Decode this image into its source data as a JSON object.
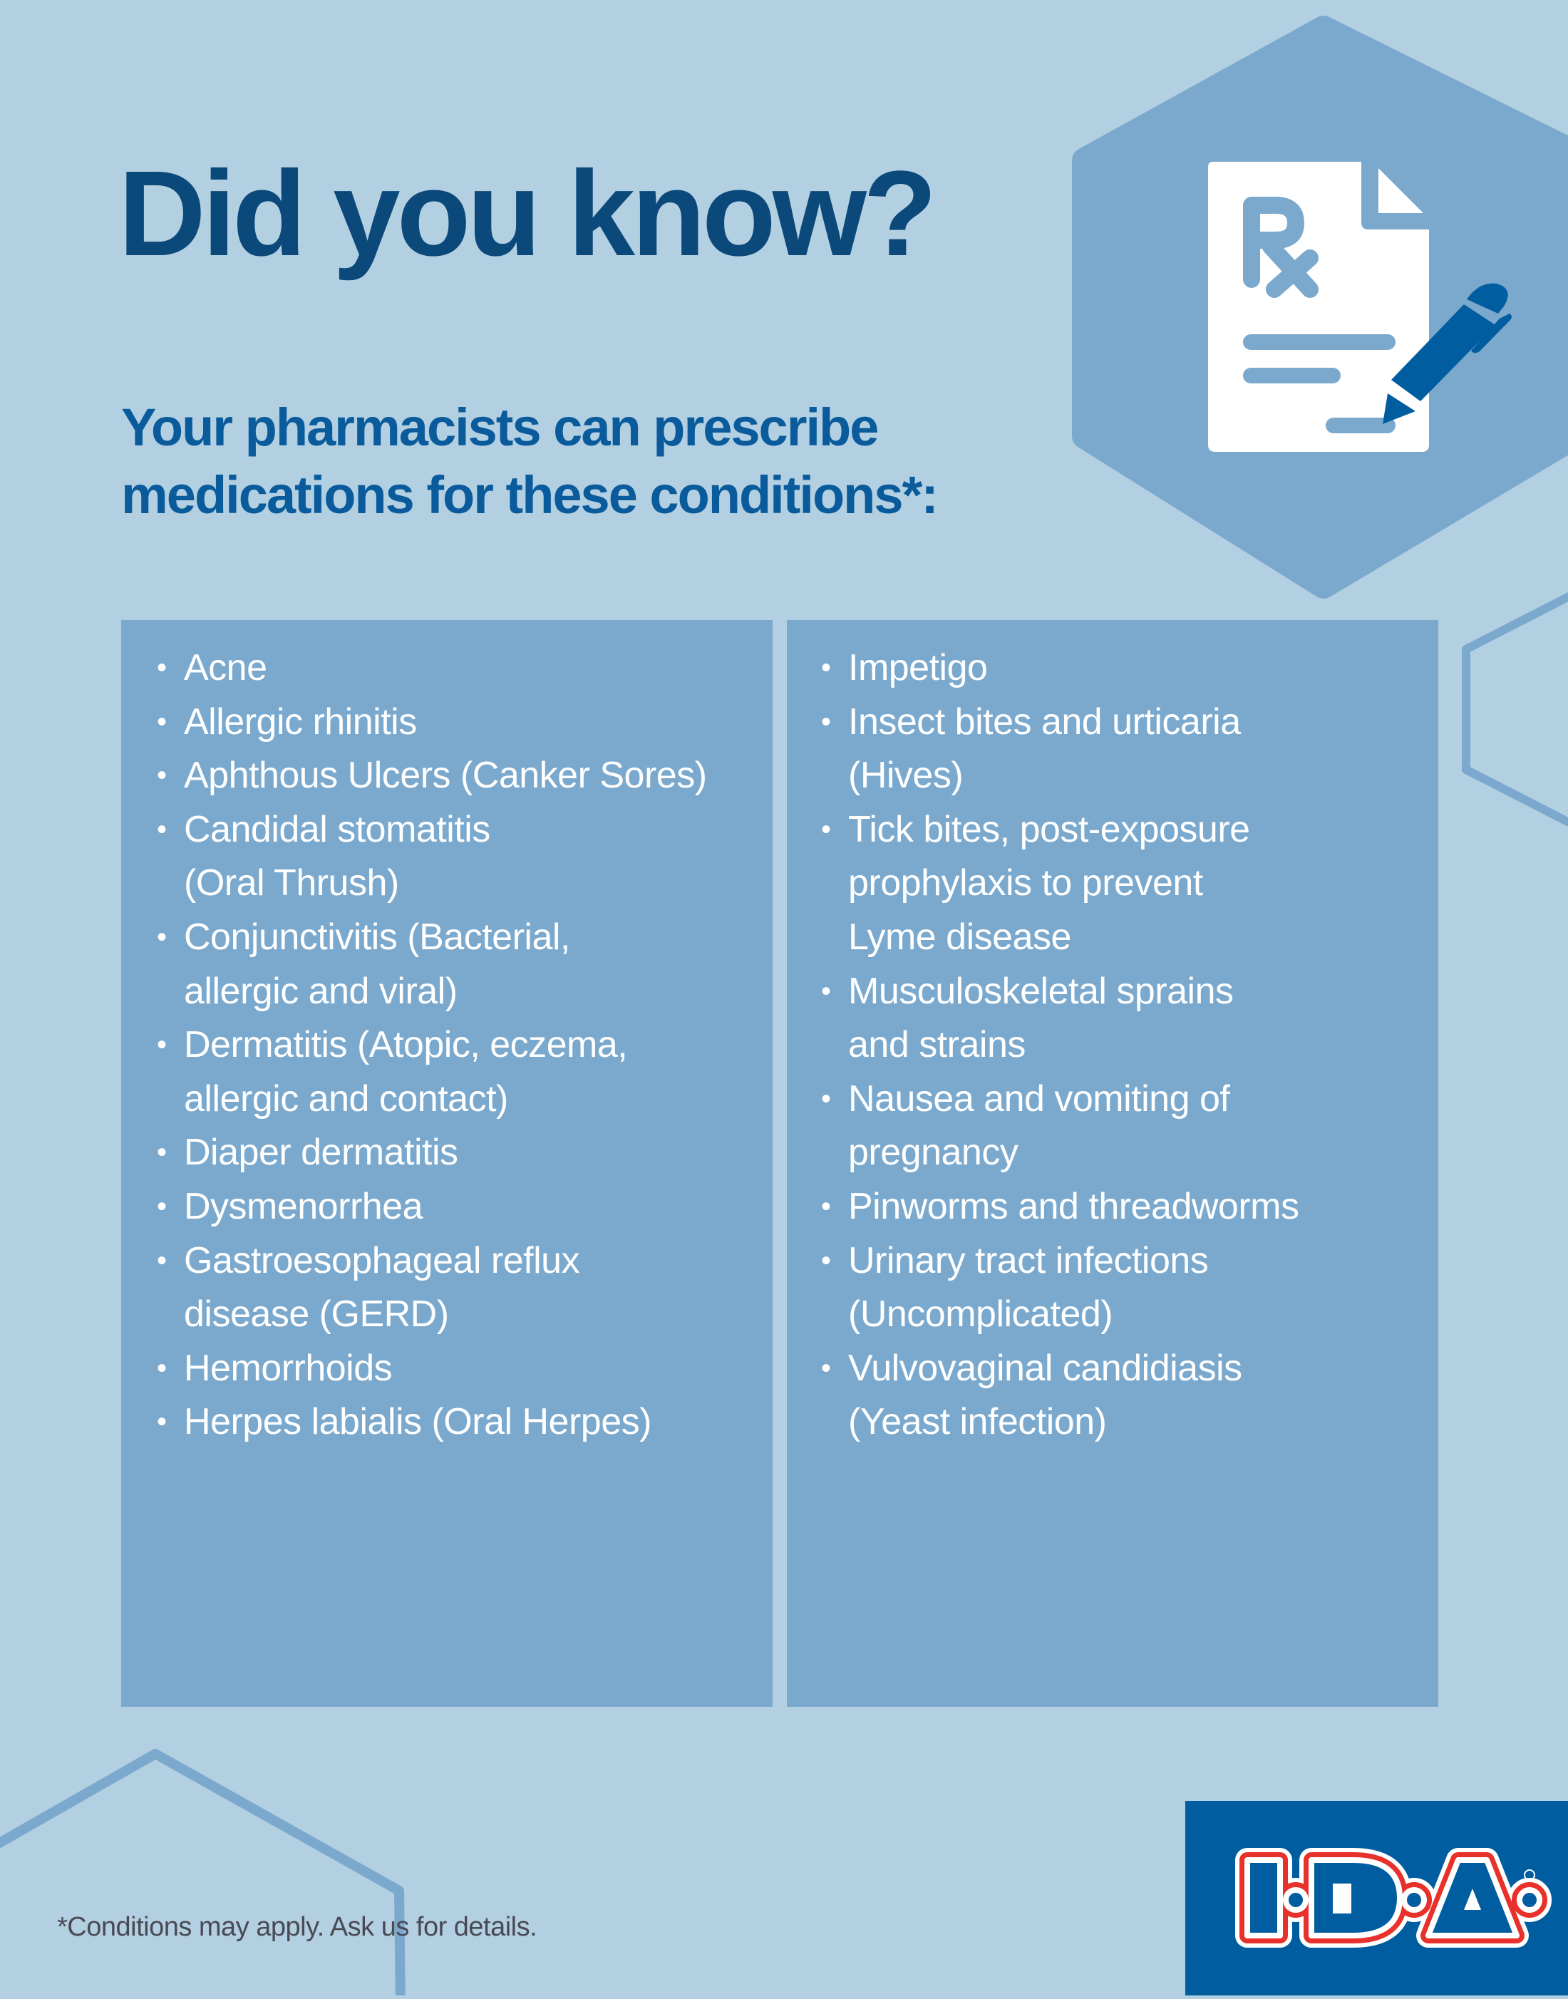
{
  "header": {
    "title": "Did you know?",
    "subtitle_lines": [
      "Your pharmacists can prescribe",
      "medications for these conditions*:"
    ]
  },
  "conditions": {
    "left": [
      [
        "Acne"
      ],
      [
        "Allergic rhinitis"
      ],
      [
        "Aphthous Ulcers (Canker Sores)"
      ],
      [
        "Candidal stomatitis",
        "(Oral Thrush)"
      ],
      [
        "Conjunctivitis (Bacterial,",
        "allergic and viral)"
      ],
      [
        "Dermatitis (Atopic, eczema,",
        "allergic and contact)"
      ],
      [
        "Diaper dermatitis"
      ],
      [
        "Dysmenorrhea"
      ],
      [
        "Gastroesophageal reflux",
        "disease (GERD)"
      ],
      [
        "Hemorrhoids"
      ],
      [
        "Herpes labialis (Oral Herpes)"
      ]
    ],
    "right": [
      [
        "Impetigo"
      ],
      [
        "Insect bites and urticaria",
        "(Hives)"
      ],
      [
        "Tick bites, post-exposure",
        "prophylaxis to prevent",
        "Lyme disease"
      ],
      [
        "Musculoskeletal sprains",
        "and strains"
      ],
      [
        "Nausea and vomiting of",
        "pregnancy"
      ],
      [
        "Pinworms and threadworms"
      ],
      [
        "Urinary tract infections",
        "(Uncomplicated)"
      ],
      [
        "Vulvovaginal candidiasis",
        "(Yeast infection)"
      ]
    ],
    "bullet": "•"
  },
  "footer": {
    "note": "*Conditions may apply. Ask us for details.",
    "logo_text": "I.D.A.",
    "logo_mark": "®"
  },
  "icons": {
    "hero": "prescription-document-with-pen-icon"
  },
  "colors": {
    "background": "#b3d0e2",
    "panel": "#7ba9cd",
    "title": "#0b497a",
    "subtitle": "#0a5b9c",
    "brand_blue": "#005da0",
    "brand_red": "#e8312a"
  }
}
